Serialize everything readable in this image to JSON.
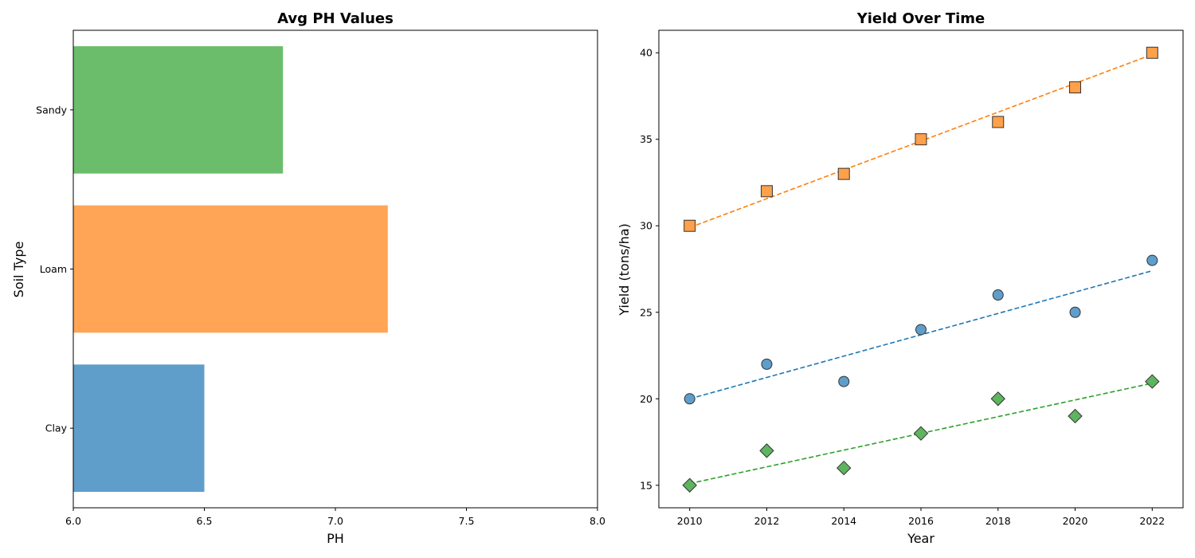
{
  "chart_data": [
    {
      "type": "bar",
      "orientation": "horizontal",
      "title": "Avg PH Values",
      "xlabel": "PH",
      "ylabel": "Soil Type",
      "categories": [
        "Clay",
        "Loam",
        "Sandy"
      ],
      "values": [
        6.5,
        7.2,
        6.8
      ],
      "colors": [
        "#5f9ecb",
        "#ffa555",
        "#6bbd6b"
      ],
      "xlim": [
        6.0,
        8.0
      ],
      "xticks": [
        "6.0",
        "6.5",
        "7.0",
        "7.5",
        "8.0"
      ],
      "grid": false
    },
    {
      "type": "scatter",
      "title": "Yield Over Time",
      "xlabel": "Year",
      "ylabel": "Yield (tons/ha)",
      "x": [
        2010,
        2012,
        2014,
        2016,
        2018,
        2020,
        2022
      ],
      "xlim": [
        2009.2,
        2022.8
      ],
      "ylim": [
        13.7,
        41.3
      ],
      "xticks": [
        2010,
        2012,
        2014,
        2016,
        2018,
        2020,
        2022
      ],
      "yticks": [
        15,
        20,
        25,
        30,
        35,
        40
      ],
      "grid": false,
      "series": [
        {
          "marker": "circle",
          "color": "#5f9ecb",
          "trend_color": "#1f77b4",
          "values": [
            20,
            22,
            21,
            24,
            26,
            25,
            28
          ],
          "trend": [
            20.0,
            27.4
          ]
        },
        {
          "marker": "square",
          "color": "#ffa04a",
          "trend_color": "#ff7f0e",
          "values": [
            30,
            32,
            33,
            35,
            36,
            38,
            40
          ],
          "trend": [
            29.9,
            39.9
          ]
        },
        {
          "marker": "diamond",
          "color": "#5fb45f",
          "trend_color": "#2ca02c",
          "values": [
            15,
            17,
            16,
            18,
            20,
            19,
            21
          ],
          "trend": [
            15.1,
            20.9
          ]
        }
      ]
    }
  ]
}
